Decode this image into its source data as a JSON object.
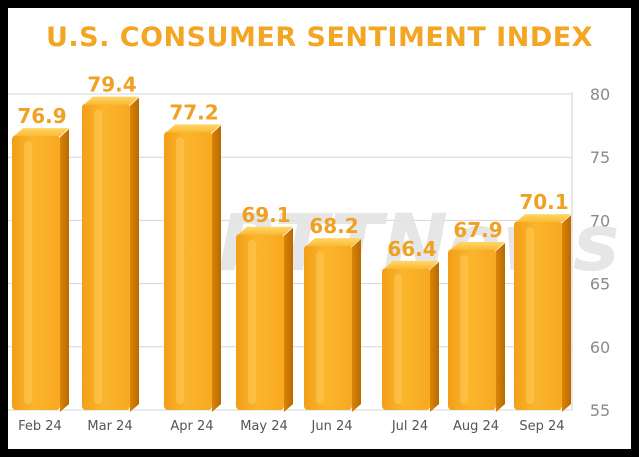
{
  "chart_data": {
    "type": "bar",
    "title": "U.S. CONSUMER SENTIMENT INDEX",
    "categories": [
      "Feb 24",
      "Mar 24",
      "Apr 24",
      "May 24",
      "Jun 24",
      "Jul 24",
      "Aug 24",
      "Sep 24"
    ],
    "values": [
      76.9,
      79.4,
      77.2,
      69.1,
      68.2,
      66.4,
      67.9,
      70.1
    ],
    "yticks": [
      "80",
      "75",
      "70",
      "65",
      "60",
      "55"
    ],
    "ylim": [
      55,
      80
    ],
    "grid": true,
    "watermark": "RTTNews",
    "bar_color": "#f6a51c",
    "title_color": "#f3a524"
  }
}
